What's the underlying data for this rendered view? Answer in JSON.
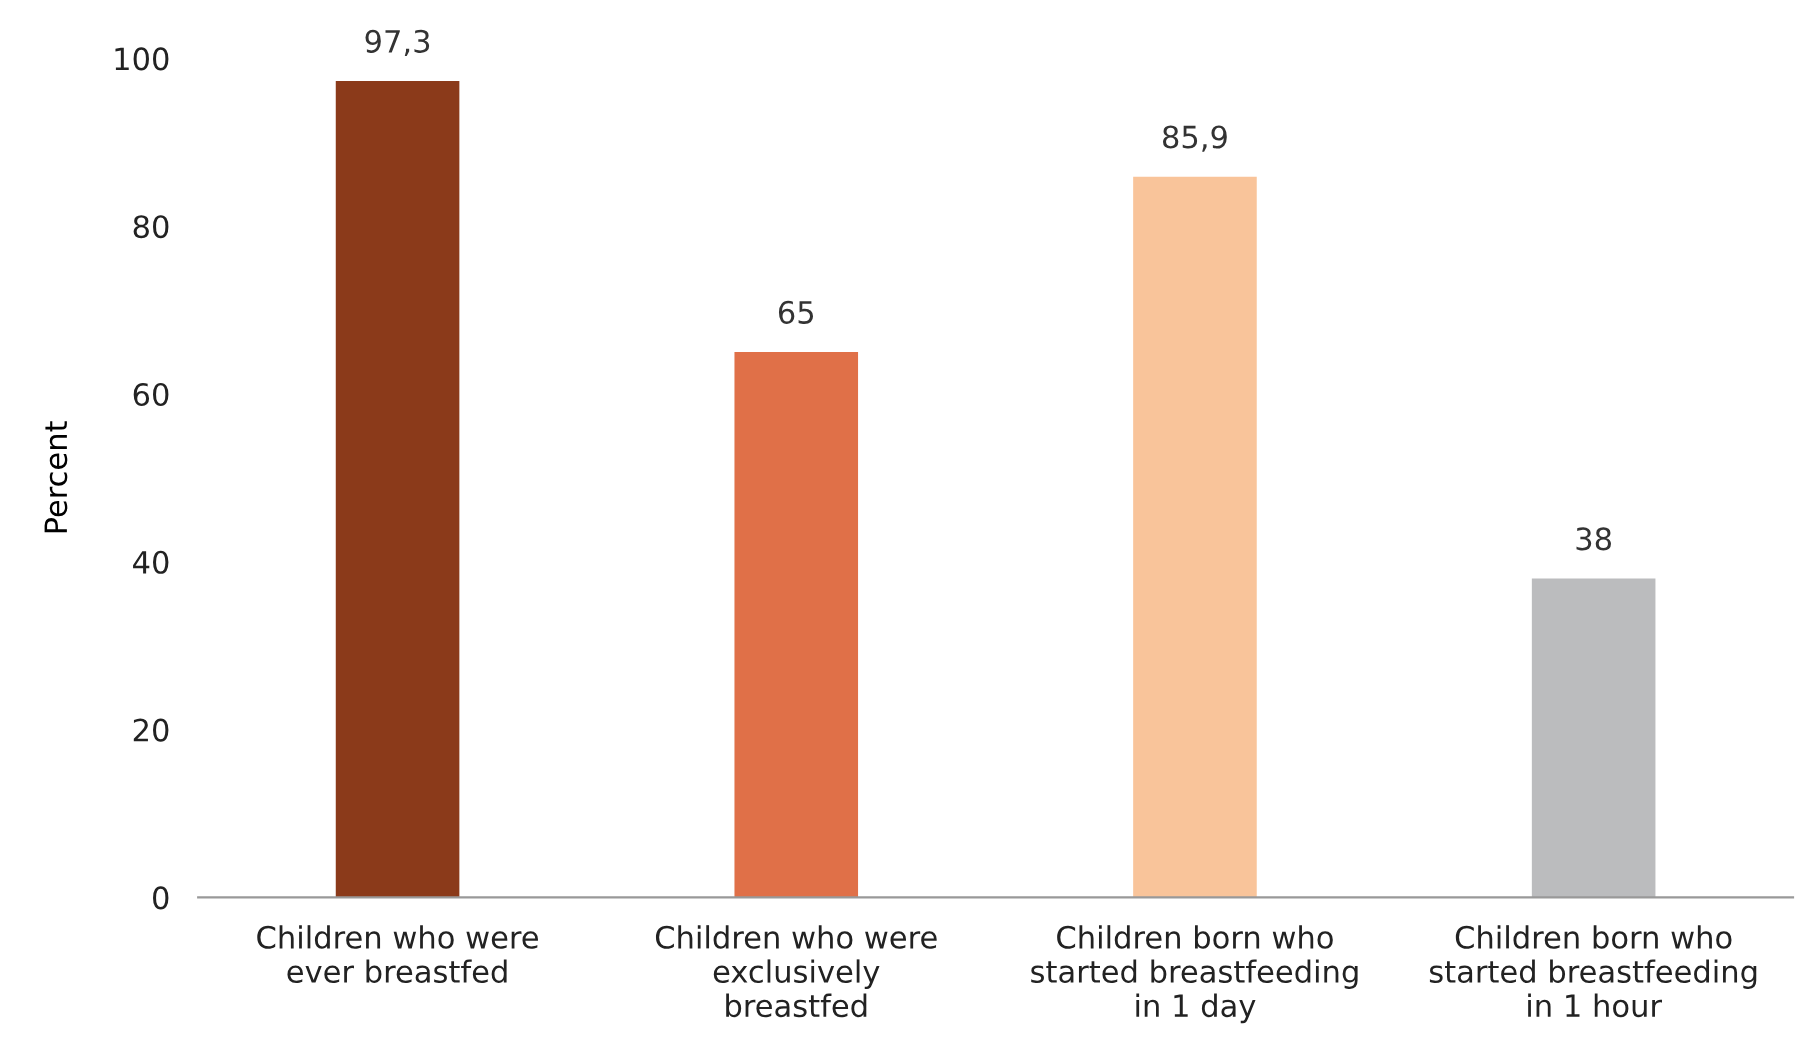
{
  "chart_data": {
    "type": "bar",
    "ylabel": "Percent",
    "categories": [
      "Children who were\never breastfed",
      "Children who were\nexclusively\nbreastfed",
      "Children born who\nstarted breastfeeding\nin 1 day",
      "Children born who\nstarted breastfeeding\nin 1 hour"
    ],
    "values": [
      97.3,
      65,
      85.9,
      38
    ],
    "colors": [
      "#8b3a1a",
      "#e07048",
      "#f9c49a",
      "#bbbcbe"
    ],
    "value_labels": [
      "97,3",
      "65",
      "85,9",
      "38"
    ],
    "ylim": [
      0,
      100
    ],
    "yticks": [
      0,
      20,
      40,
      60,
      80,
      100
    ],
    "grid": false,
    "legend": false
  }
}
